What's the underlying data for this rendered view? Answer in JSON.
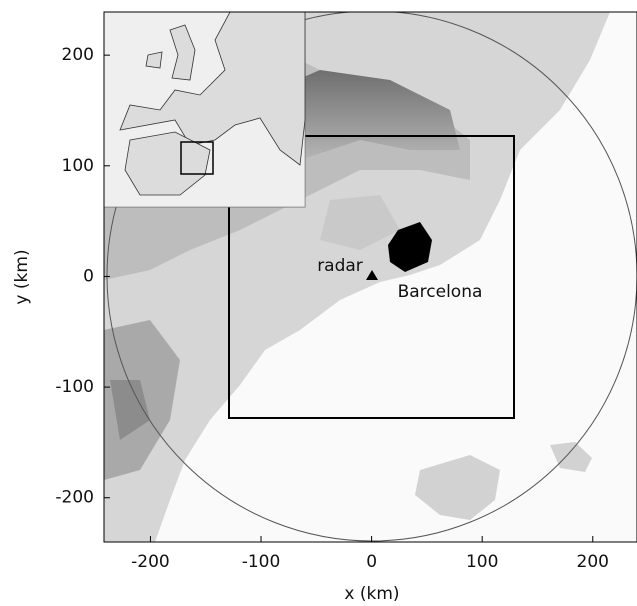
{
  "chart_data": {
    "type": "map",
    "xlabel": "x (km)",
    "ylabel": "y (km)",
    "xlim": [
      -242,
      240
    ],
    "ylim": [
      -240,
      239
    ],
    "xticks": [
      -200,
      -100,
      0,
      100,
      200
    ],
    "yticks": [
      -200,
      -100,
      0,
      100,
      200
    ],
    "annotations": [
      "radar",
      "Barcelona"
    ]
  }
}
